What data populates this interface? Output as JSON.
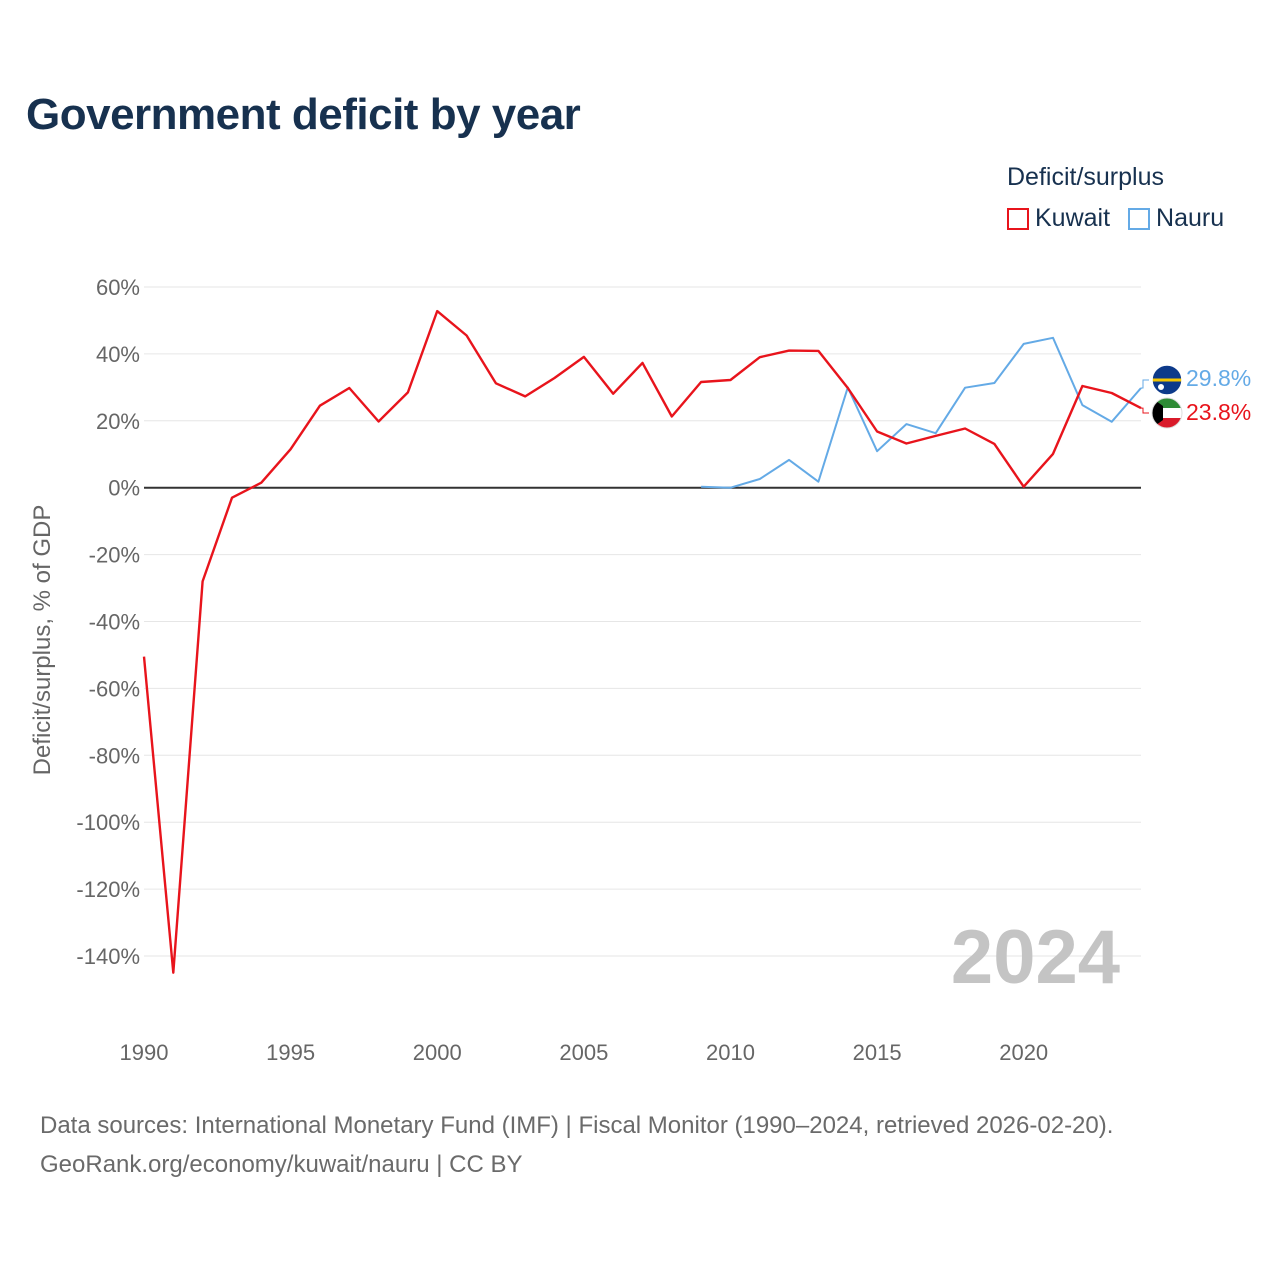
{
  "chart_data": {
    "type": "line",
    "title": "Government deficit by year",
    "legend_title": "Deficit/surplus",
    "ylabel": "Deficit/surplus, % of GDP",
    "xlabel": "",
    "xlim": [
      1990,
      2024
    ],
    "ylim": [
      -160,
      60
    ],
    "yticks": [
      60,
      40,
      20,
      0,
      -20,
      -40,
      -60,
      -80,
      -100,
      -120,
      -140
    ],
    "ytick_labels": [
      "60%",
      "40%",
      "20%",
      "0%",
      "-20%",
      "-40%",
      "-60%",
      "-80%",
      "-100%",
      "-120%",
      "-140%"
    ],
    "xticks": [
      1990,
      1995,
      2000,
      2005,
      2010,
      2015,
      2020
    ],
    "xtick_labels": [
      "1990",
      "1995",
      "2000",
      "2005",
      "2010",
      "2015",
      "2020"
    ],
    "year_watermark": "2024",
    "legend_position": "top-right",
    "series": [
      {
        "name": "Kuwait",
        "color": "#e8141c",
        "end_label": "23.8%",
        "flag": "kuwait-flag",
        "x": [
          1990,
          1991,
          1992,
          1993,
          1994,
          1995,
          1996,
          1997,
          1998,
          1999,
          2000,
          2001,
          2002,
          2003,
          2004,
          2005,
          2006,
          2007,
          2008,
          2009,
          2010,
          2011,
          2012,
          2013,
          2014,
          2015,
          2016,
          2017,
          2018,
          2019,
          2020,
          2021,
          2022,
          2023,
          2024
        ],
        "values": [
          -50.5,
          -145,
          -28,
          -3,
          1.5,
          11.5,
          24.5,
          29.8,
          19.8,
          28.5,
          52.8,
          45.5,
          31.2,
          27.3,
          32.8,
          39.1,
          28.1,
          37.3,
          21.3,
          31.6,
          32.2,
          39,
          41,
          40.9,
          29.8,
          16.8,
          13.2,
          15.5,
          17.7,
          13.1,
          0.3,
          10.1,
          30.4,
          28.3,
          23.8
        ]
      },
      {
        "name": "Nauru",
        "color": "#64aae6",
        "end_label": "29.8%",
        "flag": "nauru-flag",
        "x": [
          2009,
          2010,
          2011,
          2012,
          2013,
          2014,
          2015,
          2016,
          2017,
          2018,
          2019,
          2020,
          2021,
          2022,
          2023,
          2024
        ],
        "values": [
          0.3,
          0,
          2.6,
          8.3,
          1.8,
          30,
          10.9,
          19,
          16.3,
          29.9,
          31.3,
          43,
          44.8,
          24.7,
          19.7,
          29.8
        ]
      }
    ]
  },
  "footer": {
    "sources": "Data sources: International Monetary Fund (IMF) | Fiscal Monitor (1990–2024, retrieved 2026-02-20).",
    "attribution": "GeoRank.org/economy/kuwait/nauru | CC BY"
  }
}
